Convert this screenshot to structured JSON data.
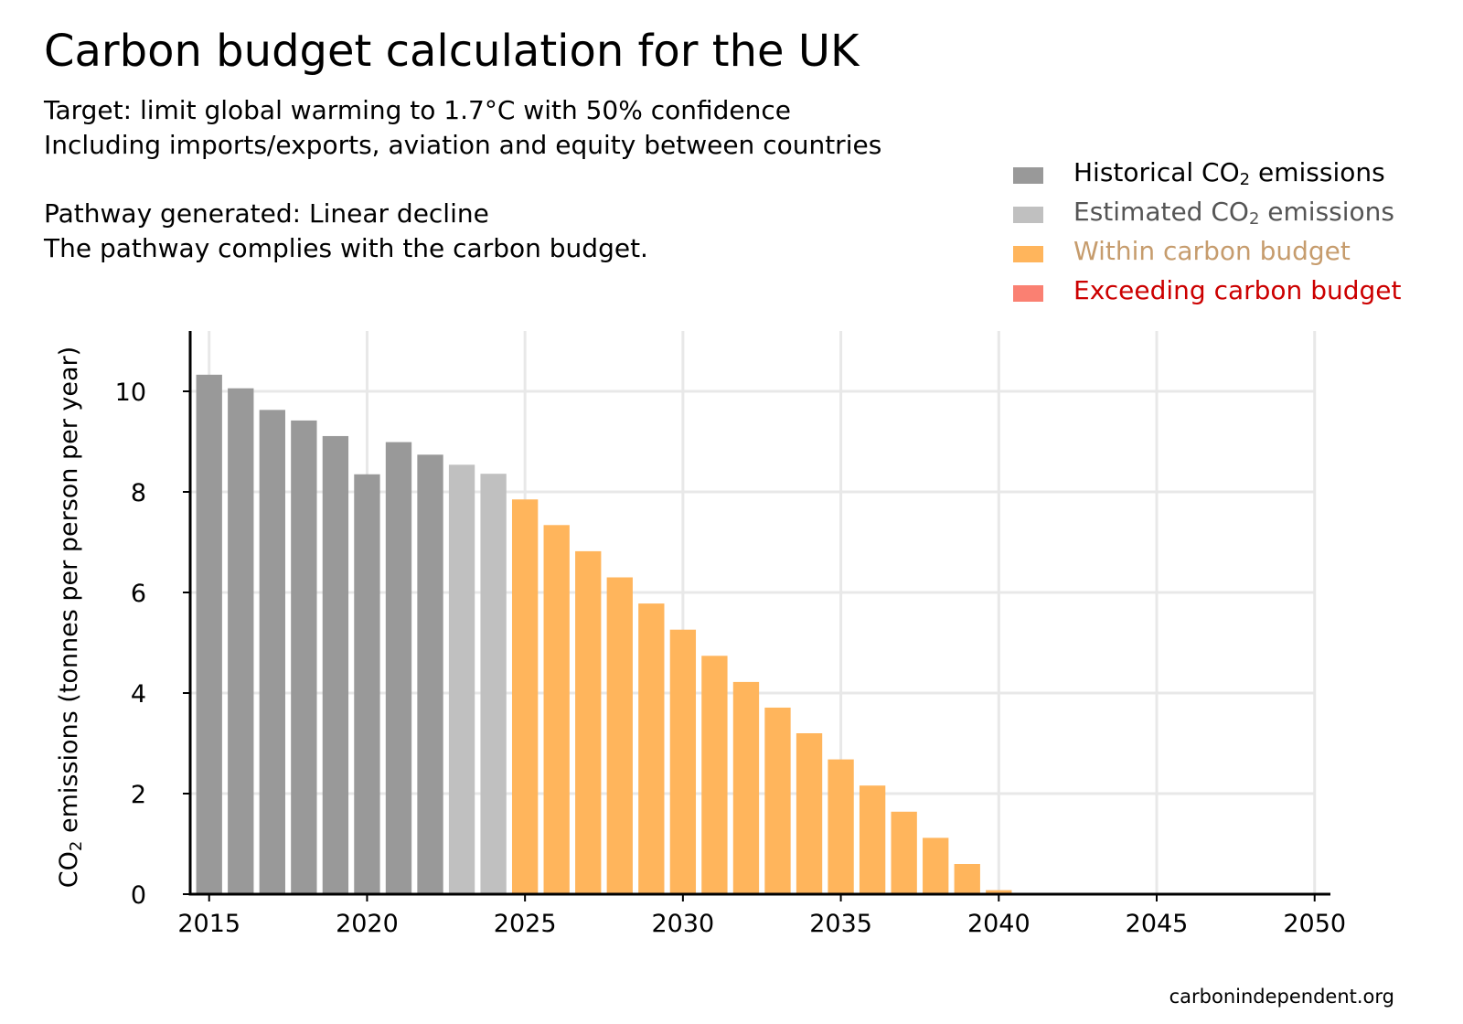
{
  "header": {
    "title": "Carbon budget calculation for the UK",
    "line1": "Target: limit global warming to 1.7°C with 50% confidence",
    "line2": "Including imports/exports, aviation and equity between countries",
    "line3": "Pathway generated: Linear decline",
    "line4": "The pathway complies with the carbon budget."
  },
  "legend": [
    {
      "pre": "Historical CO",
      "sub": "2",
      "post": " emissions",
      "swatch": "#999999",
      "text_color": "#000000"
    },
    {
      "pre": "Estimated CO",
      "sub": "2",
      "post": " emissions",
      "swatch": "#c0c0c0",
      "text_color": "#555555"
    },
    {
      "pre": "Within carbon budget",
      "sub": "",
      "post": "",
      "swatch": "#ffb55c",
      "text_color": "#c69c6d"
    },
    {
      "pre": "Exceeding carbon budget",
      "sub": "",
      "post": "",
      "swatch": "#fa8072",
      "text_color": "#cc0000"
    }
  ],
  "credit": "carbonindependent.org",
  "chart_data": {
    "type": "bar",
    "ylabel_pre": "CO",
    "ylabel_sub": "2",
    "ylabel_post": " emissions (tonnes per person per year)",
    "xlim": [
      2014.4,
      2050.5
    ],
    "ylim": [
      0,
      11.2
    ],
    "xticks": [
      2015,
      2020,
      2025,
      2030,
      2035,
      2040,
      2045,
      2050
    ],
    "yticks": [
      0,
      2,
      4,
      6,
      8,
      10
    ],
    "grid": true,
    "colors": {
      "historical": "#999999",
      "estimated": "#c0c0c0",
      "within": "#ffb55c",
      "exceeding": "#fa8072"
    },
    "series": [
      {
        "name": "Historical CO2 emissions",
        "key": "historical",
        "x": [
          2015,
          2016,
          2017,
          2018,
          2019,
          2020,
          2021,
          2022
        ],
        "values": [
          10.33,
          10.06,
          9.63,
          9.42,
          9.11,
          8.35,
          8.99,
          8.74
        ]
      },
      {
        "name": "Estimated CO2 emissions",
        "key": "estimated",
        "x": [
          2023,
          2024
        ],
        "values": [
          8.54,
          8.36
        ]
      },
      {
        "name": "Within carbon budget",
        "key": "within",
        "x": [
          2025,
          2026,
          2027,
          2028,
          2029,
          2030,
          2031,
          2032,
          2033,
          2034,
          2035,
          2036,
          2037,
          2038,
          2039,
          2040,
          2041,
          2042,
          2043,
          2044,
          2045,
          2046,
          2047,
          2048,
          2049,
          2050
        ],
        "values": [
          7.85,
          7.34,
          6.82,
          6.3,
          5.78,
          5.26,
          4.74,
          4.22,
          3.71,
          3.2,
          2.68,
          2.16,
          1.64,
          1.12,
          0.6,
          0.08,
          0,
          0,
          0,
          0,
          0,
          0,
          0,
          0,
          0,
          0.02
        ]
      },
      {
        "name": "Exceeding carbon budget",
        "key": "exceeding",
        "x": [],
        "values": []
      }
    ]
  }
}
